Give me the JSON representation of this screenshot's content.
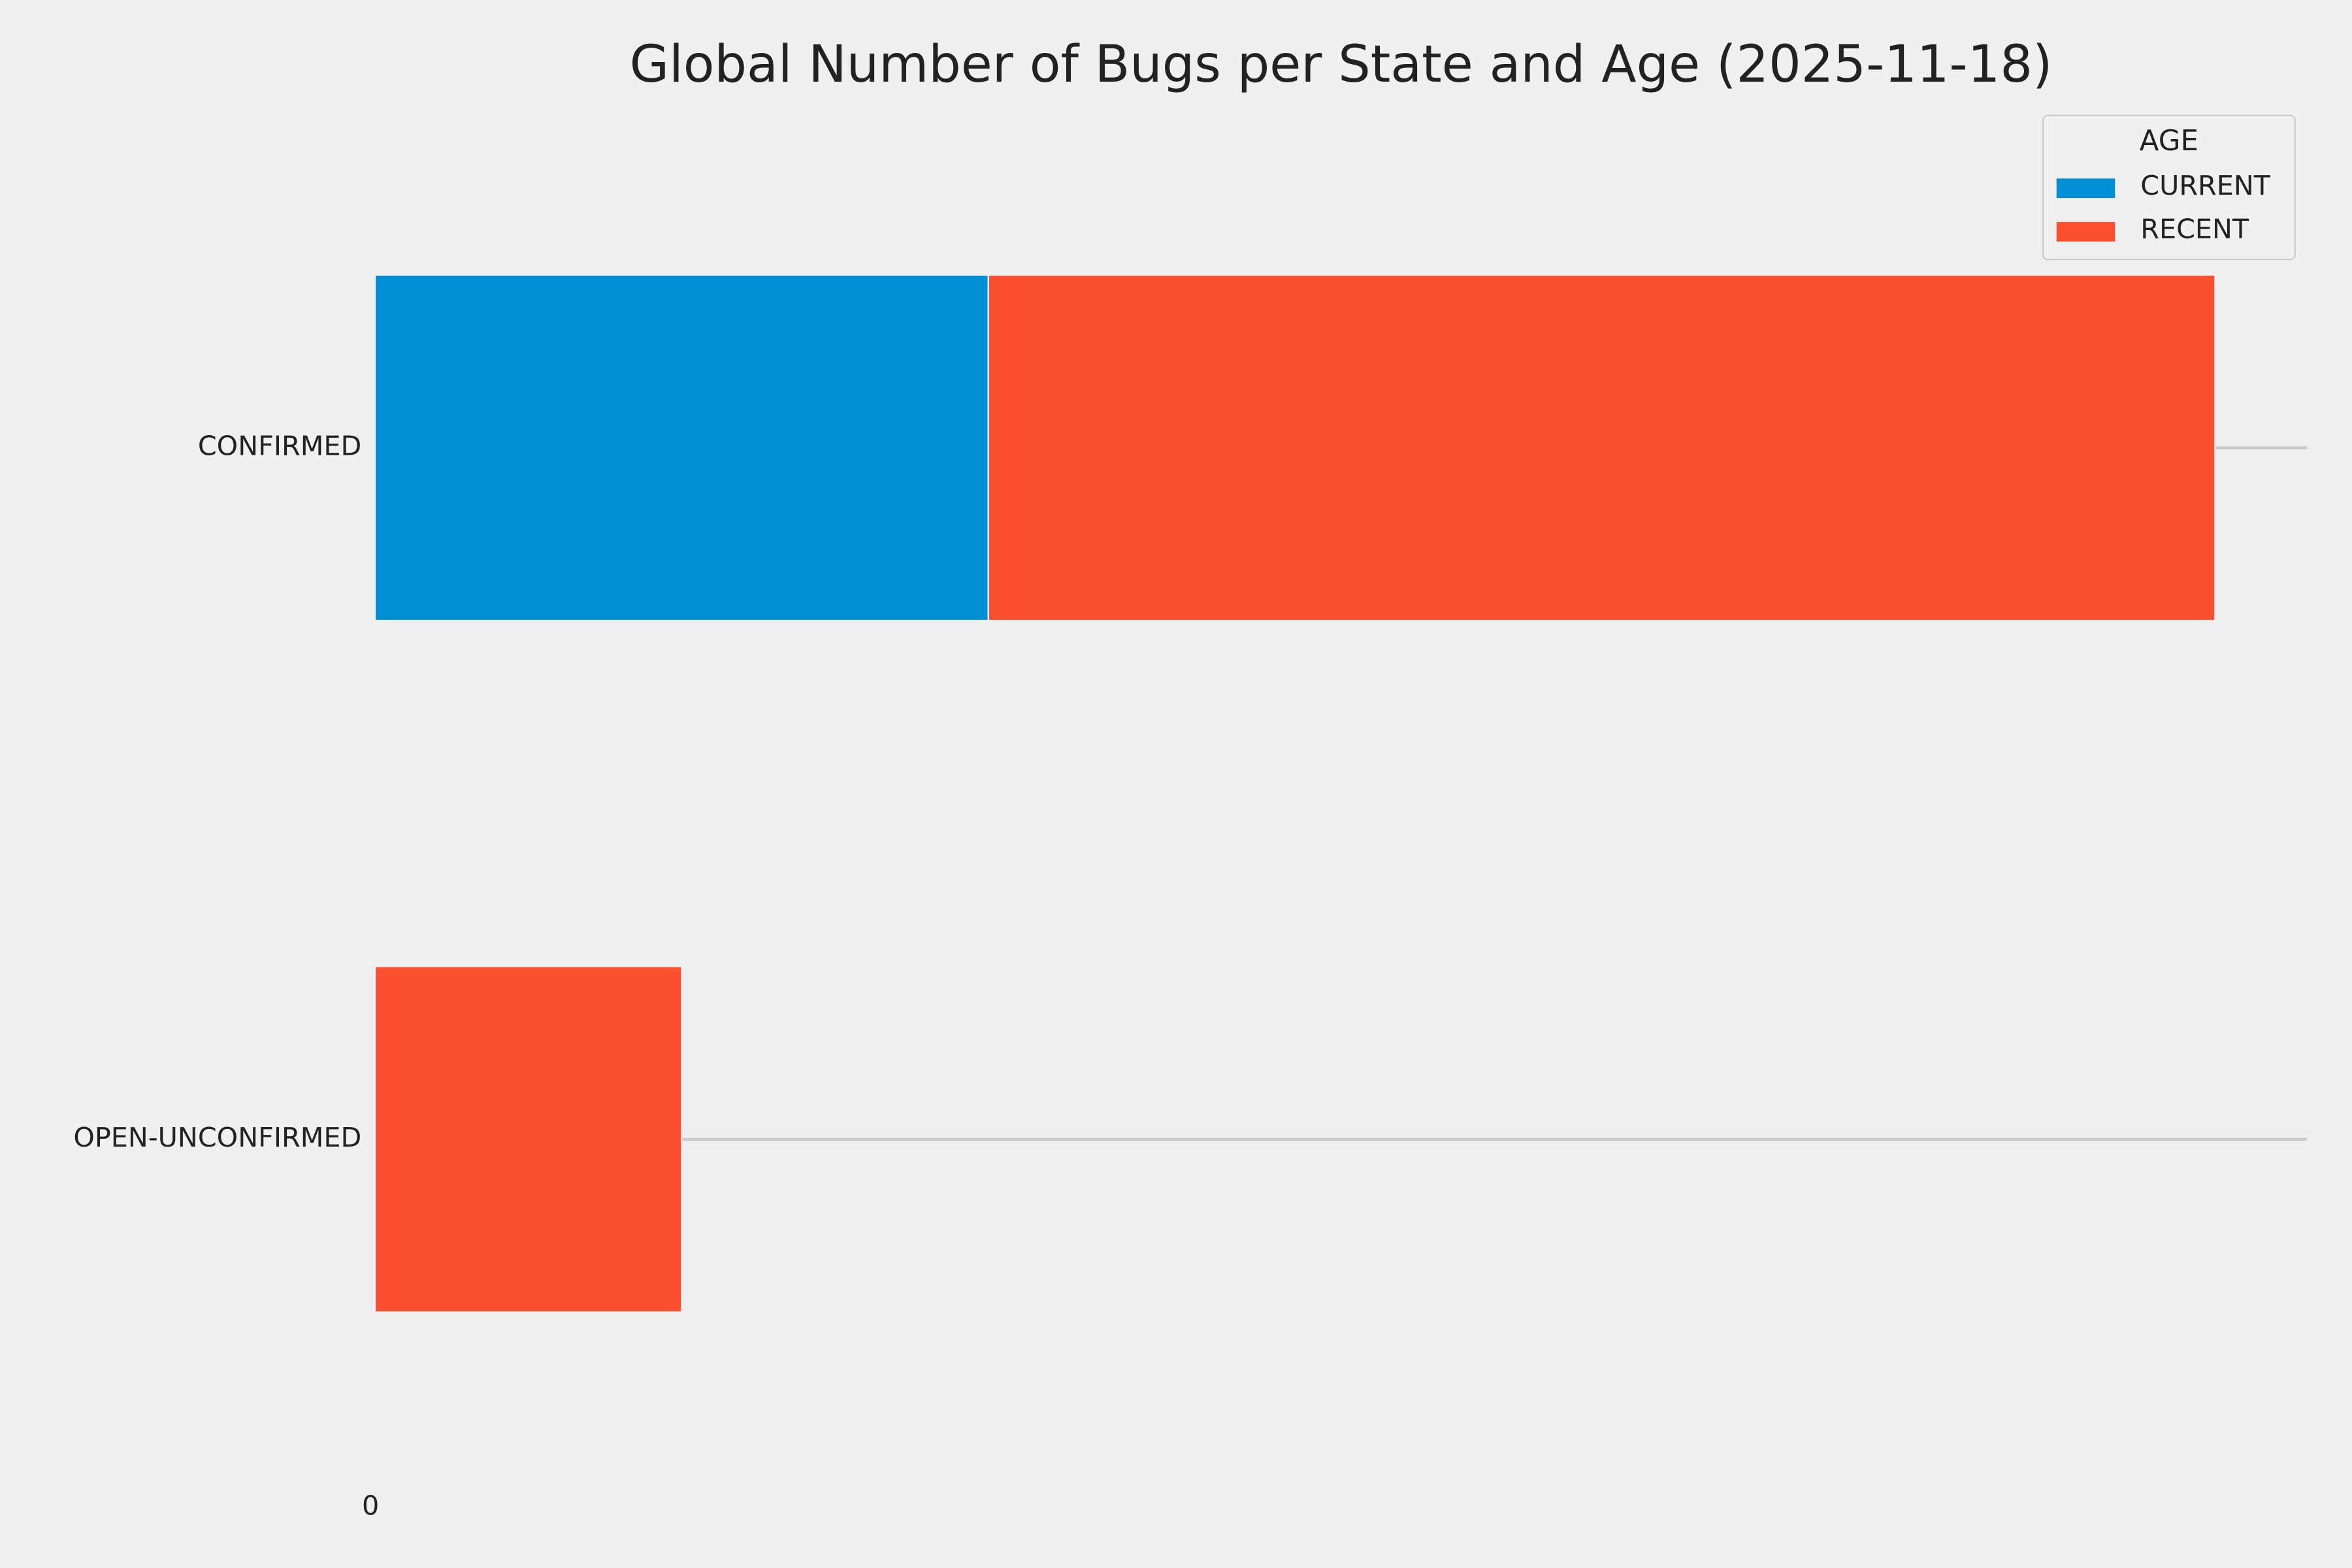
{
  "chart_data": {
    "type": "stacked-barh",
    "title": "Global Number of Bugs per State and Age (2025-11-18)",
    "categories": [
      "CONFIRMED",
      "OPEN-UNCONFIRMED"
    ],
    "series": [
      {
        "name": "CURRENT",
        "color": "#008fd5",
        "values": [
          2,
          0
        ]
      },
      {
        "name": "RECENT",
        "color": "#fc4f30",
        "values": [
          4,
          1
        ]
      }
    ],
    "legend_title": "AGE",
    "legend": "upper right",
    "xlim": [
      0,
      6.3
    ],
    "xticks": [
      0
    ],
    "grid": true
  }
}
